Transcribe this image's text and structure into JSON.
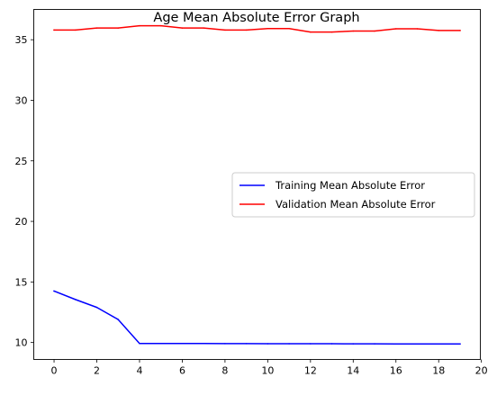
{
  "chart_data": {
    "type": "line",
    "title": "Age Mean Absolute Error Graph",
    "xlabel": "",
    "ylabel": "",
    "xlim": [
      -0.95,
      19.95
    ],
    "ylim": [
      8.6,
      37.5
    ],
    "xticks": [
      0,
      2,
      4,
      6,
      8,
      10,
      12,
      14,
      16,
      18,
      20
    ],
    "yticks": [
      10,
      15,
      20,
      25,
      30,
      35
    ],
    "grid": false,
    "legend_position": "center-right",
    "x": [
      0,
      1,
      2,
      3,
      4,
      5,
      6,
      7,
      8,
      9,
      10,
      11,
      12,
      13,
      14,
      15,
      16,
      17,
      18,
      19
    ],
    "series": [
      {
        "name": "Training Mean Absolute Error",
        "color": "#0000ff",
        "values": [
          14.25,
          13.55,
          12.9,
          11.9,
          9.92,
          9.92,
          9.92,
          9.92,
          9.91,
          9.91,
          9.9,
          9.9,
          9.9,
          9.9,
          9.89,
          9.89,
          9.88,
          9.88,
          9.88,
          9.88
        ]
      },
      {
        "name": "Validation Mean Absolute Error",
        "color": "#ff0000",
        "values": [
          35.8,
          35.8,
          35.97,
          35.97,
          36.15,
          36.15,
          35.97,
          35.97,
          35.8,
          35.8,
          35.92,
          35.92,
          35.63,
          35.63,
          35.72,
          35.72,
          35.9,
          35.9,
          35.76,
          35.76
        ]
      }
    ]
  }
}
